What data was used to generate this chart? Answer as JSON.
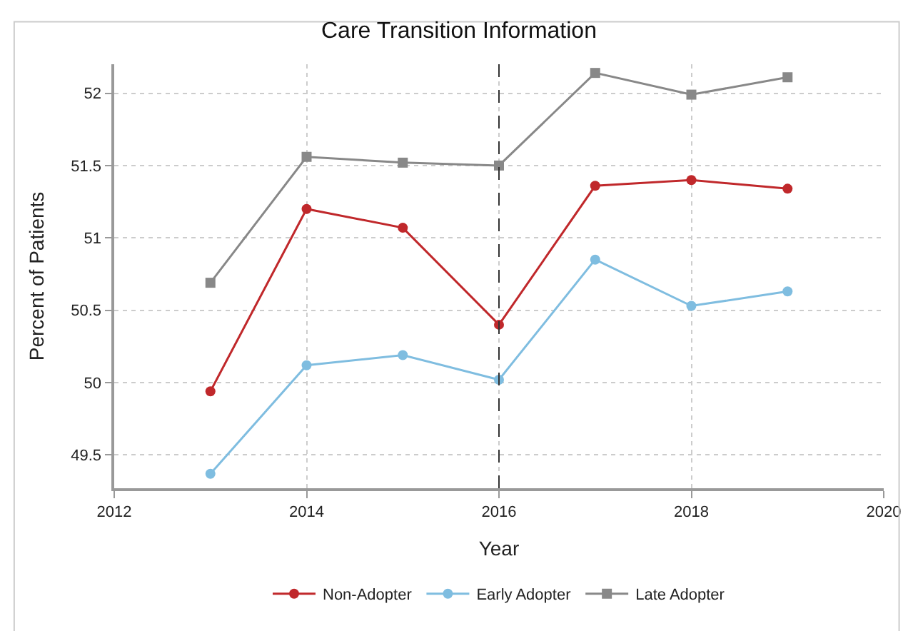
{
  "chart_data": {
    "type": "line",
    "title": "Care Transition Information",
    "xlabel": "Year",
    "ylabel": "Percent of Patients",
    "x": [
      2013,
      2014,
      2015,
      2016,
      2017,
      2018,
      2019
    ],
    "series": [
      {
        "name": "Non-Adopter",
        "color": "#c0282b",
        "marker": "circle",
        "values": [
          49.94,
          51.2,
          51.07,
          50.4,
          51.36,
          51.4,
          51.34
        ]
      },
      {
        "name": "Early Adopter",
        "color": "#7fbde0",
        "marker": "circle",
        "values": [
          49.37,
          50.12,
          50.19,
          50.02,
          50.85,
          50.53,
          50.63
        ]
      },
      {
        "name": "Late Adopter",
        "color": "#888888",
        "marker": "square",
        "values": [
          50.69,
          51.56,
          51.52,
          51.5,
          52.14,
          51.99,
          52.11
        ]
      }
    ],
    "xlim": [
      2012,
      2020
    ],
    "xticks": [
      2012,
      2014,
      2016,
      2018,
      2020
    ],
    "ylim": [
      49.27,
      52.2
    ],
    "yticks": [
      49.5,
      50,
      50.5,
      51,
      51.5,
      52
    ],
    "ref_lines": [
      {
        "axis": "x",
        "value": 2016,
        "color": "#333333",
        "line_style": "dashed"
      }
    ],
    "grid": true,
    "legend": "bottom",
    "line_style": "solid"
  }
}
